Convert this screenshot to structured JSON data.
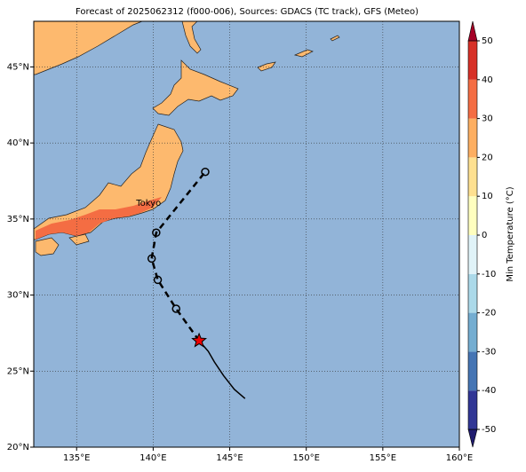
{
  "chart_data": {
    "type": "map",
    "title": "Forecast of 2025062312 (f000-006), Sources: GDACS (TC track), GFS (Meteo)",
    "xlim": [
      132.2,
      160
    ],
    "ylim": [
      20,
      48
    ],
    "xticks": [
      {
        "value": 135,
        "label": "135°E"
      },
      {
        "value": 140,
        "label": "140°E"
      },
      {
        "value": 145,
        "label": "145°E"
      },
      {
        "value": 150,
        "label": "150°E"
      },
      {
        "value": 155,
        "label": "155°E"
      },
      {
        "value": 160,
        "label": "160°E"
      }
    ],
    "yticks": [
      {
        "value": 20,
        "label": "20°N"
      },
      {
        "value": 25,
        "label": "25°N"
      },
      {
        "value": 30,
        "label": "30°N"
      },
      {
        "value": 35,
        "label": "35°N"
      },
      {
        "value": 40,
        "label": "40°N"
      },
      {
        "value": 45,
        "label": "45°N"
      }
    ],
    "grid": true,
    "colorbar": {
      "label": "Min Temperature (°C)",
      "ticks": [
        -50,
        -40,
        -30,
        -20,
        -10,
        0,
        10,
        20,
        30,
        40,
        50
      ],
      "colors": [
        "#313695",
        "#4575b4",
        "#74add1",
        "#abd9e9",
        "#e0f3f8",
        "#ffffbf",
        "#fee090",
        "#fdae61",
        "#f46d43",
        "#d73027"
      ],
      "under_color": "#1f1b6e",
      "over_color": "#a50026"
    },
    "past_track": {
      "lon": [
        146,
        145.3,
        144.6,
        144,
        143.6,
        143
      ],
      "lat": [
        23.2,
        23.8,
        24.7,
        25.6,
        26.3,
        27
      ]
    },
    "forecast_track": {
      "lon": [
        143,
        141.5,
        140.3,
        139.9,
        140.2,
        143.4
      ],
      "lat": [
        27,
        29.1,
        31,
        32.4,
        34.1,
        38.1
      ]
    },
    "annotations": [
      {
        "text": "Tokyo",
        "lon": 139.7,
        "lat": 35.7
      }
    ]
  }
}
